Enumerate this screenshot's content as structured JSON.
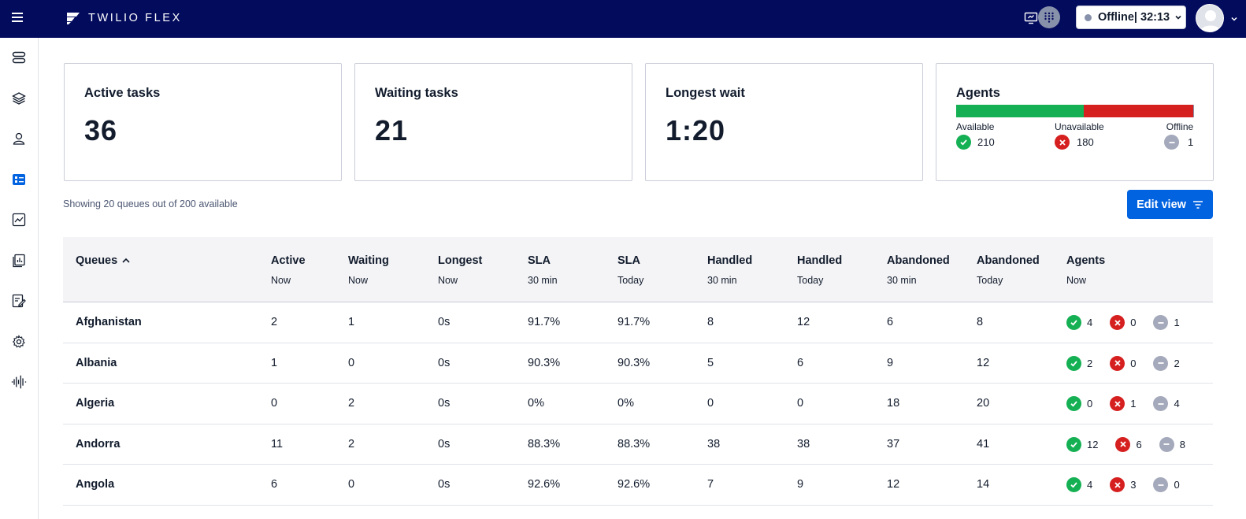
{
  "brand": {
    "name": "TWILIO FLEX"
  },
  "header": {
    "status_label": "Offline| 32:13"
  },
  "colors": {
    "topbar": "#030b5d",
    "accent": "#0263e0",
    "available": "#14b053",
    "unavailable": "#d61f1f",
    "offline": "#8891aa"
  },
  "cards": {
    "active": {
      "title": "Active tasks",
      "value": "36"
    },
    "waiting": {
      "title": "Waiting tasks",
      "value": "21"
    },
    "longest": {
      "title": "Longest wait",
      "value": "1:20"
    },
    "agents": {
      "title": "Agents",
      "available": {
        "label": "Available",
        "count": "210"
      },
      "unavailable": {
        "label": "Unavailable",
        "count": "180"
      },
      "offline": {
        "label": "Offline",
        "count": "1"
      }
    }
  },
  "summary": {
    "showing": "Showing 20 queues out of 200 available",
    "edit_view": "Edit view"
  },
  "table": {
    "columns": [
      {
        "title": "Queues",
        "sub": ""
      },
      {
        "title": "Active",
        "sub": "Now"
      },
      {
        "title": "Waiting",
        "sub": "Now"
      },
      {
        "title": "Longest",
        "sub": "Now"
      },
      {
        "title": "SLA",
        "sub": "30 min"
      },
      {
        "title": "SLA",
        "sub": "Today"
      },
      {
        "title": "Handled",
        "sub": "30 min"
      },
      {
        "title": "Handled",
        "sub": "Today"
      },
      {
        "title": "Abandoned",
        "sub": "30 min"
      },
      {
        "title": "Abandoned",
        "sub": "Today"
      },
      {
        "title": "Agents",
        "sub": "Now"
      }
    ],
    "rows": [
      {
        "queue": "Afghanistan",
        "active": "2",
        "waiting": "1",
        "longest": "0s",
        "sla30": "91.7%",
        "slaToday": "91.7%",
        "handled30": "8",
        "handledToday": "12",
        "abandoned30": "6",
        "abandonedToday": "8",
        "agents": {
          "available": "4",
          "unavailable": "0",
          "offline": "1"
        }
      },
      {
        "queue": "Albania",
        "active": "1",
        "waiting": "0",
        "longest": "0s",
        "sla30": "90.3%",
        "slaToday": "90.3%",
        "handled30": "5",
        "handledToday": "6",
        "abandoned30": "9",
        "abandonedToday": "12",
        "agents": {
          "available": "2",
          "unavailable": "0",
          "offline": "2"
        }
      },
      {
        "queue": "Algeria",
        "active": "0",
        "waiting": "2",
        "longest": "0s",
        "sla30": "0%",
        "slaToday": "0%",
        "handled30": "0",
        "handledToday": "0",
        "abandoned30": "18",
        "abandonedToday": "20",
        "agents": {
          "available": "0",
          "unavailable": "1",
          "offline": "4"
        }
      },
      {
        "queue": "Andorra",
        "active": "11",
        "waiting": "2",
        "longest": "0s",
        "sla30": "88.3%",
        "slaToday": "88.3%",
        "handled30": "38",
        "handledToday": "38",
        "abandoned30": "37",
        "abandonedToday": "41",
        "agents": {
          "available": "12",
          "unavailable": "6",
          "offline": "8"
        }
      },
      {
        "queue": "Angola",
        "active": "6",
        "waiting": "0",
        "longest": "0s",
        "sla30": "92.6%",
        "slaToday": "92.6%",
        "handled30": "7",
        "handledToday": "9",
        "abandoned30": "12",
        "abandonedToday": "14",
        "agents": {
          "available": "4",
          "unavailable": "3",
          "offline": "0"
        }
      }
    ]
  }
}
